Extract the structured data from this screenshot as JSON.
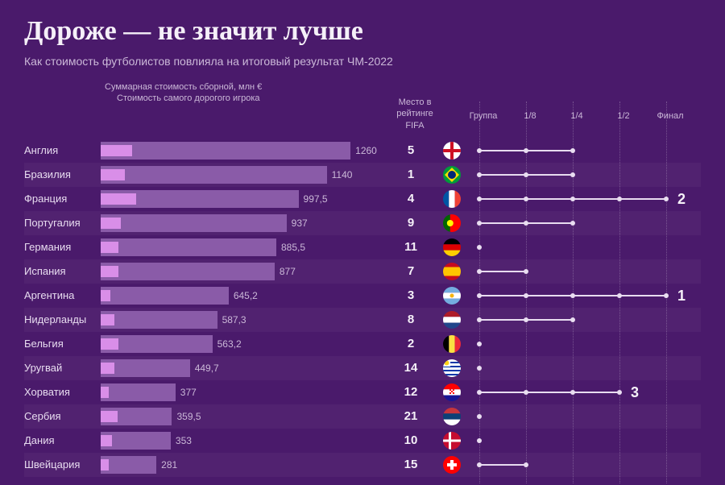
{
  "title": "Дороже — не значит лучше",
  "subtitle": "Как стоимость футболистов повлияла на итоговый результат ЧМ-2022",
  "legend": {
    "line1": "Суммарная стоимость сборной, млн €",
    "line2": "Стоимость самого дорогого игрока"
  },
  "columns": {
    "fifa": "Место\nв рейтинге\nFIFA",
    "stages": [
      "Группа",
      "1/8",
      "1/4",
      "1/2",
      "Финал"
    ]
  },
  "chart": {
    "max_value": 1300,
    "bar_outer_color": "#8a5ba8",
    "bar_inner_color": "#d98ee8",
    "stage_positions": [
      0,
      58,
      116,
      174,
      232
    ]
  },
  "rows": [
    {
      "country": "Англия",
      "total": 1260,
      "player": 160,
      "fifa": "5",
      "flag": "england",
      "stage_reached": 2,
      "final_place": null
    },
    {
      "country": "Бразилия",
      "total": 1140,
      "player": 120,
      "fifa": "1",
      "flag": "brazil",
      "stage_reached": 2,
      "final_place": null
    },
    {
      "country": "Франция",
      "total": 997.5,
      "player": 180,
      "fifa": "4",
      "flag": "france",
      "stage_reached": 4,
      "final_place": "2"
    },
    {
      "country": "Португалия",
      "total": 937,
      "player": 100,
      "fifa": "9",
      "flag": "portugal",
      "stage_reached": 2,
      "final_place": null
    },
    {
      "country": "Германия",
      "total": 885.5,
      "player": 90,
      "fifa": "11",
      "flag": "germany",
      "stage_reached": 0,
      "final_place": null
    },
    {
      "country": "Испания",
      "total": 877,
      "player": 90,
      "fifa": "7",
      "flag": "spain",
      "stage_reached": 1,
      "final_place": null
    },
    {
      "country": "Аргентина",
      "total": 645.2,
      "player": 50,
      "fifa": "3",
      "flag": "argentina",
      "stage_reached": 4,
      "final_place": "1"
    },
    {
      "country": "Нидерланды",
      "total": 587.3,
      "player": 70,
      "fifa": "8",
      "flag": "netherlands",
      "stage_reached": 2,
      "final_place": null
    },
    {
      "country": "Бельгия",
      "total": 563.2,
      "player": 90,
      "fifa": "2",
      "flag": "belgium",
      "stage_reached": 0,
      "final_place": null
    },
    {
      "country": "Уругвай",
      "total": 449.7,
      "player": 70,
      "fifa": "14",
      "flag": "uruguay",
      "stage_reached": 0,
      "final_place": null
    },
    {
      "country": "Хорватия",
      "total": 377,
      "player": 40,
      "fifa": "12",
      "flag": "croatia",
      "stage_reached": 3,
      "final_place": "3"
    },
    {
      "country": "Сербия",
      "total": 359.5,
      "player": 85,
      "fifa": "21",
      "flag": "serbia",
      "stage_reached": 0,
      "final_place": null
    },
    {
      "country": "Дания",
      "total": 353,
      "player": 55,
      "fifa": "10",
      "flag": "denmark",
      "stage_reached": 0,
      "final_place": null
    },
    {
      "country": "Швейцария",
      "total": 281,
      "player": 40,
      "fifa": "15",
      "flag": "switzerland",
      "stage_reached": 1,
      "final_place": null
    }
  ],
  "flags": {
    "england": [
      [
        "#ffffff",
        "0,0,22,22"
      ],
      [
        "#ce1124",
        "9,0,4,22"
      ],
      [
        "#ce1124",
        "0,9,22,4"
      ]
    ],
    "brazil": [
      [
        "#009b3a",
        "0,0,22,22"
      ],
      [
        "#fedf00",
        "poly:11,2 20,11 11,20 2,11"
      ],
      [
        "#002776",
        "circle:11,11,5"
      ]
    ],
    "france": [
      [
        "#0055a4",
        "0,0,7.3,22"
      ],
      [
        "#ffffff",
        "7.3,0,7.3,22"
      ],
      [
        "#ef4135",
        "14.6,0,7.4,22"
      ]
    ],
    "portugal": [
      [
        "#006600",
        "0,0,8.8,22"
      ],
      [
        "#ff0000",
        "8.8,0,13.2,22"
      ],
      [
        "#ffff00",
        "circle:8.8,11,4"
      ]
    ],
    "germany": [
      [
        "#000000",
        "0,0,22,7.3"
      ],
      [
        "#dd0000",
        "0,7.3,22,7.3"
      ],
      [
        "#ffce00",
        "0,14.6,22,7.4"
      ]
    ],
    "spain": [
      [
        "#c60b1e",
        "0,0,22,5.5"
      ],
      [
        "#ffc400",
        "0,5.5,22,11"
      ],
      [
        "#c60b1e",
        "0,16.5,22,5.5"
      ]
    ],
    "argentina": [
      [
        "#74acdf",
        "0,0,22,7.3"
      ],
      [
        "#ffffff",
        "0,7.3,22,7.3"
      ],
      [
        "#74acdf",
        "0,14.6,22,7.4"
      ],
      [
        "#f6b40e",
        "circle:11,11,2.5"
      ]
    ],
    "netherlands": [
      [
        "#ae1c28",
        "0,0,22,7.3"
      ],
      [
        "#ffffff",
        "0,7.3,22,7.3"
      ],
      [
        "#21468b",
        "0,14.6,22,7.4"
      ]
    ],
    "belgium": [
      [
        "#000000",
        "0,0,7.3,22"
      ],
      [
        "#fae042",
        "7.3,0,7.3,22"
      ],
      [
        "#ed2939",
        "14.6,0,7.4,22"
      ]
    ],
    "uruguay": [
      [
        "#ffffff",
        "0,0,22,22"
      ],
      [
        "#0038a8",
        "0,3,22,2"
      ],
      [
        "#0038a8",
        "0,8,22,2"
      ],
      [
        "#0038a8",
        "0,13,22,2"
      ],
      [
        "#0038a8",
        "0,18,22,2"
      ],
      [
        "#ffffff",
        "0,0,9,9"
      ],
      [
        "#fcd116",
        "circle:4.5,4.5,3"
      ]
    ],
    "croatia": [
      [
        "#ff0000",
        "0,0,22,7.3"
      ],
      [
        "#ffffff",
        "0,7.3,22,7.3"
      ],
      [
        "#171796",
        "0,14.6,22,7.4"
      ],
      [
        "#ff0000",
        "8,7,2,2"
      ],
      [
        "#ff0000",
        "12,7,2,2"
      ],
      [
        "#ff0000",
        "10,9,2,2"
      ],
      [
        "#ff0000",
        "8,11,2,2"
      ],
      [
        "#ff0000",
        "12,11,2,2"
      ]
    ],
    "serbia": [
      [
        "#c6363c",
        "0,0,22,7.3"
      ],
      [
        "#0c4076",
        "0,7.3,22,7.3"
      ],
      [
        "#ffffff",
        "0,14.6,22,7.4"
      ]
    ],
    "denmark": [
      [
        "#c60c30",
        "0,0,22,22"
      ],
      [
        "#ffffff",
        "7,0,3,22"
      ],
      [
        "#ffffff",
        "0,9.5,22,3"
      ]
    ],
    "switzerland": [
      [
        "#ff0000",
        "0,0,22,22"
      ],
      [
        "#ffffff",
        "9,5,4,12"
      ],
      [
        "#ffffff",
        "5,9,12,4"
      ]
    ]
  }
}
